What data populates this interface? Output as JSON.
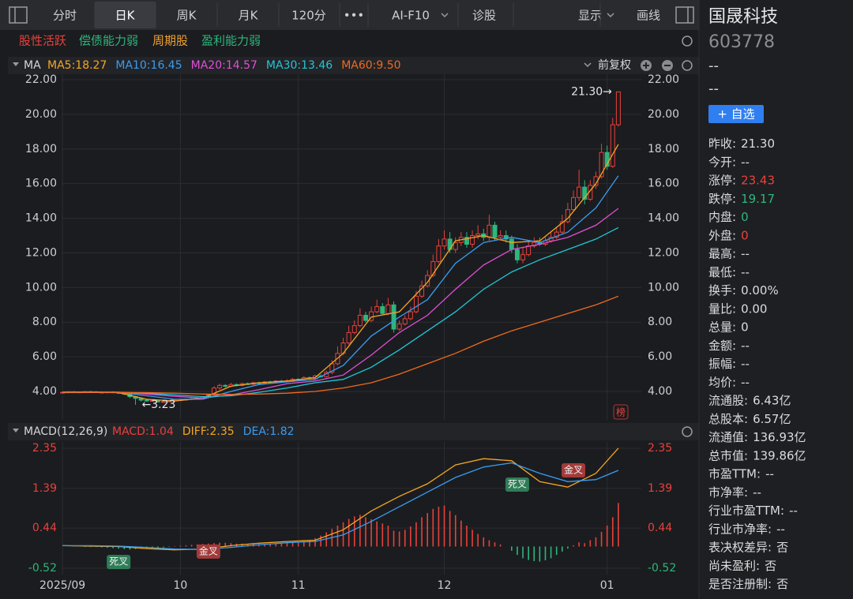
{
  "toolbar": {
    "items": [
      "分时",
      "日K",
      "周K",
      "月K",
      "120分",
      "•••",
      "AI-F10",
      "诊股",
      "显示",
      "画线"
    ],
    "active": 1
  },
  "tags": [
    {
      "text": "股性活跃",
      "color": "#e8413c"
    },
    {
      "text": "偿债能力弱",
      "color": "#2cb67d"
    },
    {
      "text": "周期股",
      "color": "#f0a030"
    },
    {
      "text": "盈利能力弱",
      "color": "#2cb67d"
    }
  ],
  "chart_data": [
    {
      "type": "candlestick",
      "header": "MA",
      "adjust": "前复权",
      "badge": "榜",
      "xlim": [
        -1,
        100
      ],
      "ylim": [
        2.36,
        22.32
      ],
      "yticks": [
        {
          "value": 22,
          "label": "22.00"
        },
        {
          "value": 20,
          "label": "20.00"
        },
        {
          "value": 18,
          "label": "18.00"
        },
        {
          "value": 16,
          "label": "16.00"
        },
        {
          "value": 14,
          "label": "14.00"
        },
        {
          "value": 12,
          "label": "12.00"
        },
        {
          "value": 10,
          "label": "10.00"
        },
        {
          "value": 8,
          "label": "8.00"
        },
        {
          "value": 6,
          "label": "6.00"
        },
        {
          "value": 4,
          "label": "4.00"
        }
      ],
      "colors": {
        "up": "#e8413c",
        "down": "#2cb67d"
      },
      "candles": {
        "open": [
          3.93,
          3.95,
          3.98,
          3.96,
          3.97,
          3.99,
          3.98,
          3.96,
          3.95,
          3.97,
          3.94,
          3.9,
          3.85,
          3.7,
          3.6,
          3.5,
          3.45,
          3.48,
          3.4,
          3.42,
          3.45,
          3.5,
          3.52,
          3.55,
          3.58,
          3.62,
          3.7,
          3.8,
          4.2,
          4.35,
          4.3,
          4.4,
          4.35,
          4.45,
          4.42,
          4.5,
          4.48,
          4.55,
          4.52,
          4.6,
          4.58,
          4.62,
          4.7,
          4.65,
          4.8,
          4.75,
          4.9,
          4.85,
          5.1,
          5.6,
          6.2,
          6.8,
          7.4,
          7.8,
          8.4,
          8.1,
          8.6,
          8.9,
          8.5,
          9.0,
          7.6,
          7.9,
          8.2,
          8.6,
          9.5,
          10.1,
          10.7,
          11.5,
          12.4,
          12.8,
          12.2,
          12.6,
          12.9,
          12.5,
          13.0,
          13.1,
          12.9,
          13.6,
          12.9,
          13.0,
          12.8,
          12.2,
          11.6,
          11.9,
          12.4,
          12.6,
          12.5,
          12.7,
          12.9,
          13.2,
          13.8,
          14.5,
          15.2,
          15.8,
          15.1,
          15.9,
          16.4,
          17.8,
          17.0,
          19.4
        ],
        "high": [
          3.99,
          4.01,
          4.02,
          4.0,
          4.02,
          4.03,
          4.02,
          4.0,
          4.0,
          4.01,
          3.98,
          3.94,
          3.9,
          3.74,
          3.64,
          3.55,
          3.52,
          3.52,
          3.46,
          3.48,
          3.55,
          3.56,
          3.58,
          3.62,
          3.66,
          3.75,
          3.85,
          4.3,
          4.45,
          4.42,
          4.5,
          4.46,
          4.52,
          4.52,
          4.56,
          4.56,
          4.6,
          4.62,
          4.66,
          4.66,
          4.7,
          4.78,
          4.76,
          4.88,
          4.86,
          4.96,
          4.98,
          5.2,
          5.8,
          6.6,
          7.1,
          7.8,
          8.1,
          8.8,
          8.6,
          8.9,
          9.3,
          9.1,
          9.4,
          9.2,
          8.1,
          8.4,
          8.9,
          9.8,
          10.4,
          11.0,
          11.9,
          12.8,
          13.3,
          13.2,
          12.9,
          13.2,
          13.2,
          13.3,
          13.6,
          13.4,
          14.2,
          13.8,
          13.3,
          13.3,
          13.0,
          12.5,
          12.3,
          12.7,
          12.9,
          12.9,
          12.9,
          13.2,
          13.5,
          14.2,
          14.9,
          15.6,
          16.8,
          16.2,
          16.2,
          16.7,
          18.3,
          18.2,
          19.8,
          21.3
        ],
        "low": [
          3.88,
          3.9,
          3.92,
          3.91,
          3.92,
          3.93,
          3.92,
          3.9,
          3.9,
          3.9,
          3.86,
          3.8,
          3.62,
          3.23,
          3.42,
          3.4,
          3.4,
          3.36,
          3.35,
          3.38,
          3.4,
          3.45,
          3.48,
          3.5,
          3.52,
          3.56,
          3.62,
          3.75,
          4.1,
          4.22,
          4.25,
          4.3,
          4.3,
          4.38,
          4.36,
          4.42,
          4.42,
          4.46,
          4.46,
          4.52,
          4.52,
          4.56,
          4.6,
          4.6,
          4.7,
          4.7,
          4.8,
          4.8,
          5.0,
          5.5,
          6.1,
          6.7,
          7.3,
          7.7,
          8.0,
          8.0,
          8.5,
          8.4,
          8.4,
          7.4,
          7.5,
          7.8,
          8.1,
          8.5,
          9.4,
          10.0,
          10.6,
          11.4,
          12.2,
          12.0,
          12.0,
          12.4,
          12.3,
          12.3,
          12.8,
          12.7,
          12.7,
          12.7,
          12.7,
          12.6,
          12.0,
          11.4,
          11.4,
          11.8,
          12.3,
          12.4,
          12.4,
          12.6,
          12.8,
          13.1,
          13.7,
          14.4,
          15.0,
          14.8,
          15.0,
          15.7,
          16.3,
          16.8,
          16.9,
          19.3
        ],
        "close": [
          3.95,
          3.98,
          3.96,
          3.97,
          3.99,
          3.98,
          3.96,
          3.95,
          3.97,
          3.94,
          3.9,
          3.85,
          3.7,
          3.6,
          3.5,
          3.45,
          3.48,
          3.4,
          3.42,
          3.45,
          3.5,
          3.52,
          3.55,
          3.58,
          3.62,
          3.7,
          3.8,
          4.2,
          4.35,
          4.3,
          4.4,
          4.35,
          4.45,
          4.42,
          4.5,
          4.48,
          4.55,
          4.52,
          4.6,
          4.58,
          4.62,
          4.7,
          4.65,
          4.8,
          4.75,
          4.9,
          4.85,
          5.1,
          5.6,
          6.2,
          6.8,
          7.4,
          7.8,
          8.4,
          8.1,
          8.6,
          8.9,
          8.5,
          9.0,
          7.6,
          7.9,
          8.2,
          8.6,
          9.5,
          10.1,
          10.7,
          11.5,
          12.4,
          12.8,
          12.2,
          12.6,
          12.9,
          12.5,
          13.0,
          13.1,
          12.9,
          13.6,
          12.9,
          13.0,
          12.8,
          12.2,
          11.6,
          11.9,
          12.4,
          12.6,
          12.5,
          12.7,
          12.9,
          13.2,
          13.8,
          14.5,
          15.2,
          15.8,
          15.1,
          15.9,
          16.4,
          17.8,
          17.0,
          19.4,
          21.3
        ]
      },
      "series": [
        {
          "name": "MA5",
          "legend_label": "MA5:18.27",
          "color": "#f5a623",
          "x": [
            0,
            5,
            10,
            15,
            20,
            25,
            30,
            35,
            40,
            45,
            50,
            55,
            60,
            65,
            70,
            75,
            80,
            85,
            90,
            95,
            99
          ],
          "values": [
            3.96,
            3.97,
            3.93,
            3.55,
            3.45,
            3.62,
            4.3,
            4.5,
            4.6,
            4.8,
            6.2,
            8.3,
            8.6,
            10.3,
            12.7,
            13.0,
            12.6,
            12.7,
            14.0,
            16.0,
            18.27
          ]
        },
        {
          "name": "MA10",
          "legend_label": "MA10:16.45",
          "color": "#3a9cf0",
          "x": [
            0,
            5,
            10,
            15,
            20,
            25,
            30,
            35,
            40,
            45,
            50,
            55,
            60,
            65,
            70,
            75,
            80,
            85,
            90,
            95,
            99
          ],
          "values": [
            3.96,
            3.96,
            3.95,
            3.75,
            3.55,
            3.55,
            4.0,
            4.4,
            4.55,
            4.7,
            5.5,
            7.2,
            8.3,
            9.3,
            11.4,
            12.6,
            12.9,
            12.6,
            13.2,
            14.6,
            16.45
          ]
        },
        {
          "name": "MA20",
          "legend_label": "MA20:14.57",
          "color": "#e04fd6",
          "x": [
            0,
            5,
            10,
            15,
            20,
            25,
            30,
            35,
            40,
            45,
            50,
            55,
            60,
            65,
            70,
            75,
            80,
            85,
            90,
            95,
            99
          ],
          "values": [
            3.95,
            3.96,
            3.96,
            3.85,
            3.72,
            3.62,
            3.8,
            4.1,
            4.45,
            4.6,
            4.95,
            6.1,
            7.4,
            8.4,
            9.9,
            11.3,
            12.2,
            12.5,
            12.9,
            13.6,
            14.57
          ]
        },
        {
          "name": "MA30",
          "legend_label": "MA30:13.46",
          "color": "#20c7d8",
          "x": [
            0,
            5,
            10,
            15,
            20,
            25,
            30,
            35,
            40,
            45,
            50,
            55,
            60,
            65,
            70,
            75,
            80,
            85,
            90,
            95,
            99
          ],
          "values": [
            3.94,
            3.95,
            3.95,
            3.9,
            3.8,
            3.7,
            3.75,
            3.95,
            4.2,
            4.5,
            4.7,
            5.4,
            6.4,
            7.5,
            8.6,
            9.9,
            10.9,
            11.6,
            12.2,
            12.8,
            13.46
          ]
        },
        {
          "name": "MA60",
          "legend_label": "MA60:9.50",
          "color": "#f06a1e",
          "x": [
            0,
            5,
            10,
            15,
            20,
            25,
            30,
            35,
            40,
            45,
            50,
            55,
            60,
            65,
            70,
            75,
            80,
            85,
            90,
            95,
            99
          ],
          "values": [
            3.93,
            3.94,
            3.94,
            3.93,
            3.9,
            3.85,
            3.83,
            3.85,
            3.9,
            4.0,
            4.2,
            4.5,
            5.0,
            5.6,
            6.2,
            6.9,
            7.5,
            8.0,
            8.5,
            9.0,
            9.5
          ]
        }
      ],
      "annotations": [
        {
          "text": "21.30→",
          "x": 99,
          "y": 21.3,
          "side": "left"
        },
        {
          "text": "←3.23",
          "x": 13,
          "y": 3.23,
          "side": "right"
        }
      ]
    },
    {
      "type": "macd",
      "header": "MACD(12,26,9)",
      "xlim": [
        -1,
        100
      ],
      "ylim": [
        -0.67,
        2.5
      ],
      "yticks": [
        2.35,
        1.39,
        0.44,
        -0.52
      ],
      "xticks": [
        {
          "value": 0,
          "label": "2025/09"
        },
        {
          "value": 21,
          "label": "10"
        },
        {
          "value": 42,
          "label": "11"
        },
        {
          "value": 68,
          "label": "12"
        },
        {
          "value": 97,
          "label": "01"
        }
      ],
      "colors": {
        "up": "#e8413c",
        "down": "#2cb67d"
      },
      "series": [
        {
          "name": "MACD",
          "legend_label": "MACD:1.04",
          "color": "#e8413c",
          "values": [
            0.0,
            0.0,
            0.01,
            0.0,
            -0.01,
            -0.01,
            -0.01,
            -0.02,
            -0.03,
            -0.04,
            -0.05,
            -0.06,
            -0.07,
            -0.06,
            -0.05,
            -0.04,
            -0.04,
            -0.03,
            -0.02,
            -0.01,
            0.01,
            0.02,
            0.03,
            0.04,
            0.05,
            0.06,
            0.07,
            0.08,
            0.09,
            0.09,
            0.08,
            0.07,
            0.07,
            0.06,
            0.06,
            0.06,
            0.06,
            0.07,
            0.07,
            0.07,
            0.08,
            0.09,
            0.1,
            0.12,
            0.15,
            0.2,
            0.26,
            0.34,
            0.42,
            0.5,
            0.58,
            0.66,
            0.72,
            0.76,
            0.7,
            0.65,
            0.6,
            0.55,
            0.5,
            0.38,
            0.36,
            0.4,
            0.48,
            0.58,
            0.7,
            0.8,
            0.9,
            0.95,
            0.98,
            0.85,
            0.75,
            0.62,
            0.5,
            0.4,
            0.3,
            0.22,
            0.15,
            0.1,
            0.05,
            0.0,
            -0.1,
            -0.2,
            -0.28,
            -0.32,
            -0.35,
            -0.36,
            -0.33,
            -0.28,
            -0.2,
            -0.12,
            -0.05,
            0.03,
            0.1,
            0.08,
            0.15,
            0.22,
            0.35,
            0.5,
            0.7,
            1.04
          ]
        },
        {
          "name": "DIFF",
          "legend_label": "DIFF:2.35",
          "color": "#f5a623",
          "x": [
            0,
            5,
            10,
            15,
            20,
            25,
            30,
            35,
            40,
            45,
            50,
            55,
            60,
            65,
            70,
            75,
            80,
            85,
            90,
            95,
            99
          ],
          "values": [
            0.02,
            0.01,
            0.0,
            -0.05,
            -0.08,
            -0.06,
            0.02,
            0.08,
            0.12,
            0.15,
            0.4,
            0.85,
            1.2,
            1.5,
            1.95,
            2.1,
            2.05,
            1.55,
            1.42,
            1.75,
            2.35
          ]
        },
        {
          "name": "DEA",
          "legend_label": "DEA:1.82",
          "color": "#3a9cf0",
          "x": [
            0,
            5,
            10,
            15,
            20,
            25,
            30,
            35,
            40,
            45,
            50,
            55,
            60,
            65,
            70,
            75,
            80,
            85,
            90,
            95,
            99
          ],
          "values": [
            0.02,
            0.02,
            0.01,
            -0.02,
            -0.06,
            -0.07,
            -0.02,
            0.04,
            0.09,
            0.12,
            0.28,
            0.6,
            0.95,
            1.3,
            1.65,
            1.9,
            2.0,
            1.75,
            1.55,
            1.6,
            1.82
          ]
        }
      ],
      "cross_labels": [
        {
          "text": "死叉",
          "x": 10,
          "y": -0.37,
          "color": "#2e7d57"
        },
        {
          "text": "金叉",
          "x": 26,
          "y": -0.12,
          "color": "#a33a3a"
        },
        {
          "text": "死叉",
          "x": 81,
          "y": 1.48,
          "color": "#2e7d57"
        },
        {
          "text": "金叉",
          "x": 91,
          "y": 1.82,
          "color": "#a33a3a"
        }
      ]
    }
  ],
  "info": {
    "name": "国晟科技",
    "code": "603778",
    "price": "--",
    "change": "--",
    "button": "+ 自选",
    "rows": [
      {
        "label": "昨收:",
        "value": "21.30"
      },
      {
        "label": "今开:",
        "value": "--"
      },
      {
        "label": "涨停:",
        "value": "23.43",
        "tone": "up"
      },
      {
        "label": "跌停:",
        "value": "19.17",
        "tone": "down"
      },
      {
        "label": "内盘:",
        "value": "0",
        "tone": "down"
      },
      {
        "label": "外盘:",
        "value": "0",
        "tone": "up"
      },
      {
        "label": "最高:",
        "value": "--"
      },
      {
        "label": "最低:",
        "value": "--"
      },
      {
        "label": "换手:",
        "value": "0.00%"
      },
      {
        "label": "量比:",
        "value": "0.00"
      },
      {
        "label": "总量:",
        "value": "0"
      },
      {
        "label": "金额:",
        "value": "--"
      },
      {
        "label": "振幅:",
        "value": "--"
      },
      {
        "label": "均价:",
        "value": "--"
      },
      {
        "label": "流通股:",
        "value": "6.43亿"
      },
      {
        "label": "总股本:",
        "value": "6.57亿"
      },
      {
        "label": "流通值:",
        "value": "136.93亿"
      },
      {
        "label": "总市值:",
        "value": "139.86亿"
      },
      {
        "label": "市盈TTM:",
        "value": "--"
      },
      {
        "label": "市净率:",
        "value": "--"
      },
      {
        "label": "行业市盈TTM:",
        "value": "--"
      },
      {
        "label": "行业市净率:",
        "value": "--"
      },
      {
        "label": "表决权差异:",
        "value": "否"
      },
      {
        "label": "尚未盈利:",
        "value": "否"
      },
      {
        "label": "是否注册制:",
        "value": "否"
      }
    ]
  }
}
